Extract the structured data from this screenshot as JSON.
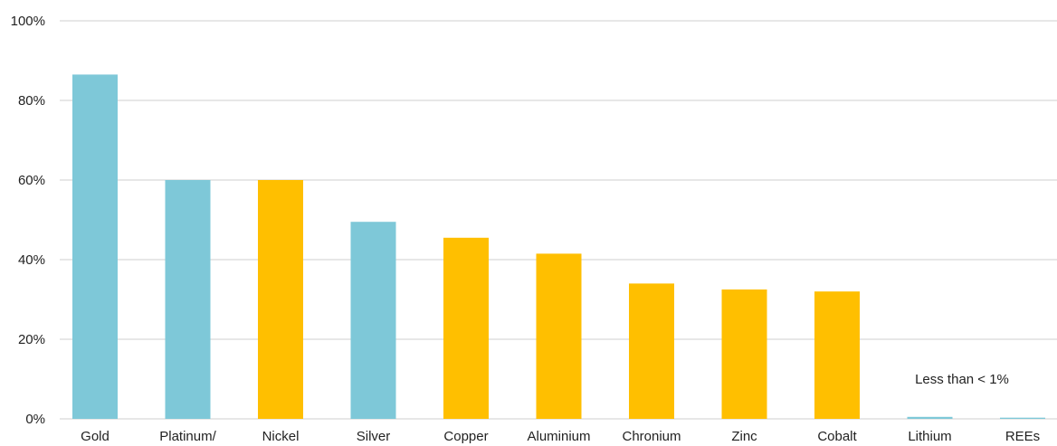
{
  "chart_data": {
    "type": "bar",
    "categories": [
      "Gold",
      "Platinum/",
      "Nickel",
      "Silver",
      "Copper",
      "Aluminium",
      "Chronium",
      "Zinc",
      "Cobalt",
      "Lithium",
      "REEs"
    ],
    "values": [
      86.5,
      60,
      60,
      49.5,
      45.5,
      41.5,
      34,
      32.5,
      32,
      0.5,
      0.3
    ],
    "bar_colors": [
      "#7ec8d8",
      "#7ec8d8",
      "#ffbf00",
      "#7ec8d8",
      "#ffbf00",
      "#ffbf00",
      "#ffbf00",
      "#ffbf00",
      "#ffbf00",
      "#7ec8d8",
      "#7ec8d8"
    ],
    "ylim": [
      0,
      100
    ],
    "yticks": [
      0,
      20,
      40,
      60,
      80,
      100
    ],
    "ytick_labels": [
      "0%",
      "20%",
      "40%",
      "60%",
      "80%",
      "100%"
    ],
    "grid": true,
    "annotation": "Less than < 1%",
    "title": "",
    "xlabel": "",
    "ylabel": ""
  },
  "colors": {
    "blue": "#7ec8d8",
    "gold": "#ffbf00",
    "grid": "#cfcfcf"
  }
}
